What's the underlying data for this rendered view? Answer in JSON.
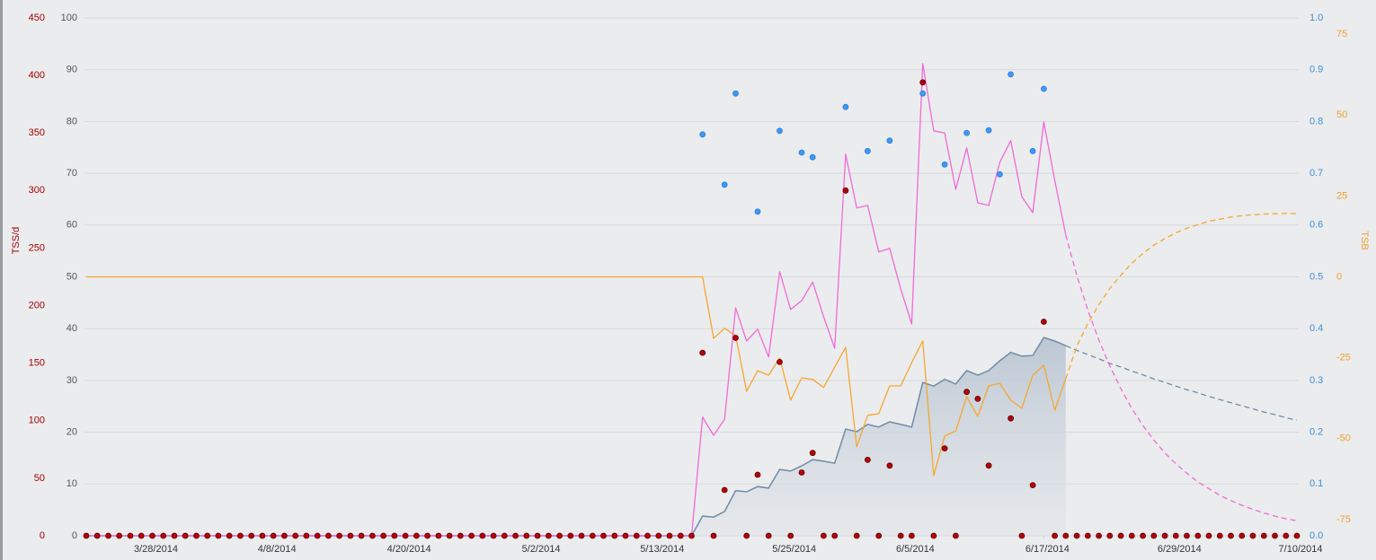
{
  "chart_data": {
    "type": "line",
    "ylabel": "TSS/d",
    "y4label": "TSB",
    "grid": true,
    "xlim": [
      0,
      110
    ],
    "xticks": [
      {
        "value": 6,
        "label": "3/28/2014"
      },
      {
        "value": 17,
        "label": "4/8/2014"
      },
      {
        "value": 29,
        "label": "4/20/2014"
      },
      {
        "value": 41,
        "label": "5/2/2014"
      },
      {
        "value": 52,
        "label": "5/13/2014"
      },
      {
        "value": 64,
        "label": "5/25/2014"
      },
      {
        "value": 75,
        "label": "6/5/2014"
      },
      {
        "value": 87,
        "label": "6/17/2014"
      },
      {
        "value": 99,
        "label": "6/29/2014"
      },
      {
        "value": 110,
        "label": "7/10/2014"
      }
    ],
    "ylim": [
      0,
      450
    ],
    "yticks": [
      0,
      50,
      100,
      150,
      200,
      250,
      300,
      350,
      400,
      450
    ],
    "y2lim": [
      0,
      100
    ],
    "y2ticks": [
      0,
      10,
      20,
      30,
      40,
      50,
      60,
      70,
      80,
      90,
      100
    ],
    "y3lim": [
      0,
      1
    ],
    "y3ticks": [
      {
        "value": 0,
        "label": "0.0"
      },
      0.1,
      0.2,
      0.3,
      0.4,
      0.5,
      0.6,
      0.7,
      0.8,
      0.9,
      {
        "value": 1,
        "label": "1.0"
      }
    ],
    "y4lim": [
      -80,
      80
    ],
    "y4ticks": [
      -75,
      -50,
      -25,
      0,
      25,
      50,
      75
    ],
    "series": [
      {
        "mark": "area",
        "axis": "y2",
        "color": "#6f8ca6",
        "x": [
          0,
          55,
          56,
          57,
          58,
          59,
          60,
          61,
          62,
          63,
          64,
          65,
          66,
          67,
          68,
          69,
          70,
          71,
          72,
          73,
          74,
          75,
          76,
          77,
          78,
          79,
          80,
          81,
          82,
          83,
          84,
          85,
          86,
          87,
          88,
          89
        ],
        "values": [
          0,
          0,
          3.8,
          3.6,
          4.7,
          8.7,
          8.5,
          9.5,
          9.2,
          12.8,
          12.5,
          13.5,
          14.7,
          14.4,
          14.0,
          20.6,
          20.1,
          21.5,
          21.0,
          22.0,
          21.5,
          21.0,
          29.6,
          28.9,
          30.2,
          29.3,
          31.9,
          31.0,
          31.9,
          33.8,
          35.4,
          34.7,
          34.8,
          38.3,
          37.6,
          36.7
        ]
      },
      {
        "mark": "line",
        "axis": "y2",
        "color": "#6f8ca6",
        "dashed": true,
        "x": [
          89,
          90,
          91,
          92,
          93,
          94,
          95,
          96,
          97,
          98,
          99,
          100,
          101,
          102,
          103,
          104,
          105,
          106,
          107,
          108,
          109,
          110
        ],
        "values": [
          36.7,
          35.8,
          35.0,
          34.2,
          33.3,
          32.6,
          31.8,
          31.1,
          30.3,
          29.6,
          28.9,
          28.2,
          27.6,
          26.9,
          26.3,
          25.7,
          25.1,
          24.5,
          23.9,
          23.4,
          22.8,
          22.3
        ]
      },
      {
        "mark": "line",
        "axis": "y4",
        "color": "#f5a731",
        "x": [
          0,
          56,
          57,
          58,
          59,
          60,
          61,
          62,
          63,
          64,
          65,
          66,
          67,
          68,
          69,
          70,
          71,
          72,
          73,
          74,
          75,
          76,
          77,
          78,
          79,
          80,
          81,
          82,
          83,
          84,
          85,
          86,
          87,
          88,
          89
        ],
        "values": [
          0,
          0,
          -19,
          -15.9,
          -18.2,
          -35.4,
          -29,
          -30.4,
          -25.1,
          -38.1,
          -31.2,
          -31.7,
          -34.2,
          -27.9,
          -21.8,
          -52.5,
          -42.8,
          -42.3,
          -33.7,
          -33.7,
          -26.5,
          -19.8,
          -61.4,
          -49.2,
          -47.6,
          -37,
          -43.1,
          -33.7,
          -32.9,
          -38.1,
          -40.6,
          -30.4,
          -27.3,
          -41.2,
          -31.5
        ]
      },
      {
        "mark": "line",
        "axis": "y4",
        "color": "#f5a731",
        "dashed": true,
        "x": [
          89,
          90,
          91,
          92,
          93,
          94,
          95,
          96,
          97,
          98,
          99,
          100,
          101,
          102,
          103,
          104,
          105,
          106,
          107,
          108,
          109,
          110
        ],
        "values": [
          -31.5,
          -21.4,
          -14.5,
          -8.6,
          -3.6,
          0.5,
          4.2,
          7.2,
          9.8,
          11.8,
          13.6,
          15.0,
          16.1,
          17.2,
          17.8,
          18.5,
          18.9,
          19.2,
          19.4,
          19.5,
          19.6,
          19.5
        ]
      },
      {
        "mark": "line",
        "axis": "y2",
        "color": "#f06ad8",
        "x": [
          0,
          55,
          56,
          57,
          58,
          59,
          60,
          61,
          62,
          63,
          64,
          65,
          66,
          67,
          68,
          69,
          70,
          71,
          72,
          73,
          74,
          75,
          76,
          77,
          78,
          79,
          80,
          81,
          82,
          83,
          84,
          85,
          86,
          87,
          88,
          89
        ],
        "values": [
          0,
          0,
          22.9,
          19.4,
          22.5,
          44,
          37.6,
          39.9,
          34.5,
          51,
          43.7,
          45.4,
          49,
          42.3,
          36.2,
          73.7,
          63.3,
          63.8,
          54.8,
          55.5,
          47.7,
          40.9,
          91.2,
          78.2,
          77.8,
          66.9,
          74.9,
          64.3,
          63.8,
          72.1,
          76.3,
          65.5,
          62.4,
          79.9,
          68.6,
          58.1
        ]
      },
      {
        "mark": "line",
        "axis": "y2",
        "color": "#f06ad8",
        "dashed": true,
        "x": [
          89,
          90,
          91,
          92,
          93,
          94,
          95,
          96,
          97,
          98,
          99,
          100,
          101,
          102,
          103,
          104,
          105,
          106,
          107,
          108,
          109,
          110
        ],
        "values": [
          58.1,
          50.3,
          43.6,
          37.8,
          32.8,
          28.4,
          24.6,
          21.3,
          18.5,
          16.0,
          13.9,
          12.1,
          10.4,
          9.1,
          7.8,
          6.8,
          5.9,
          5.1,
          4.4,
          3.8,
          3.3,
          2.9
        ]
      },
      {
        "mark": "scatter",
        "axis": "y",
        "color": "#b30008",
        "x": [
          0,
          1,
          2,
          3,
          4,
          5,
          6,
          7,
          8,
          9,
          10,
          11,
          12,
          13,
          14,
          15,
          16,
          17,
          18,
          19,
          20,
          21,
          22,
          23,
          24,
          25,
          26,
          27,
          28,
          29,
          30,
          31,
          32,
          33,
          34,
          35,
          36,
          37,
          38,
          39,
          40,
          41,
          42,
          43,
          44,
          45,
          46,
          47,
          48,
          49,
          50,
          51,
          52,
          53,
          54,
          55,
          56,
          57,
          58,
          59,
          60,
          61,
          62,
          63,
          64,
          65,
          66,
          67,
          68,
          69,
          70,
          71,
          72,
          73,
          74,
          75,
          76,
          77,
          78,
          79,
          80,
          81,
          82,
          84,
          85,
          86,
          87,
          88,
          89,
          90,
          91,
          92,
          93,
          94,
          95,
          96,
          97,
          98,
          99,
          100,
          101,
          102,
          103,
          104,
          105,
          106,
          107,
          108,
          109,
          110
        ],
        "values": [
          0,
          0,
          0,
          0,
          0,
          0,
          0,
          0,
          0,
          0,
          0,
          0,
          0,
          0,
          0,
          0,
          0,
          0,
          0,
          0,
          0,
          0,
          0,
          0,
          0,
          0,
          0,
          0,
          0,
          0,
          0,
          0,
          0,
          0,
          0,
          0,
          0,
          0,
          0,
          0,
          0,
          0,
          0,
          0,
          0,
          0,
          0,
          0,
          0,
          0,
          0,
          0,
          0,
          0,
          0,
          0,
          159,
          0,
          39.8,
          172,
          0,
          53,
          0,
          151,
          0,
          55,
          72,
          0,
          0,
          300,
          0,
          66,
          0,
          61,
          0,
          0,
          394,
          0,
          76,
          0,
          125,
          119,
          61,
          102,
          0,
          44,
          186,
          0,
          0,
          0,
          0,
          0,
          0,
          0,
          0,
          0,
          0,
          0,
          0,
          0,
          0,
          0,
          0,
          0,
          0,
          0,
          0,
          0,
          0,
          0
        ]
      },
      {
        "mark": "scatter",
        "axis": "y3",
        "color": "#3f98f2",
        "x": [
          56,
          58,
          59,
          61,
          63,
          65,
          66,
          69,
          71,
          73,
          76,
          78,
          80,
          82,
          83,
          84,
          86,
          87
        ],
        "values": [
          0.775,
          0.678,
          0.854,
          0.626,
          0.782,
          0.74,
          0.731,
          0.828,
          0.743,
          0.763,
          0.854,
          0.717,
          0.778,
          0.783,
          0.698,
          0.891,
          0.743,
          0.863
        ]
      }
    ]
  }
}
